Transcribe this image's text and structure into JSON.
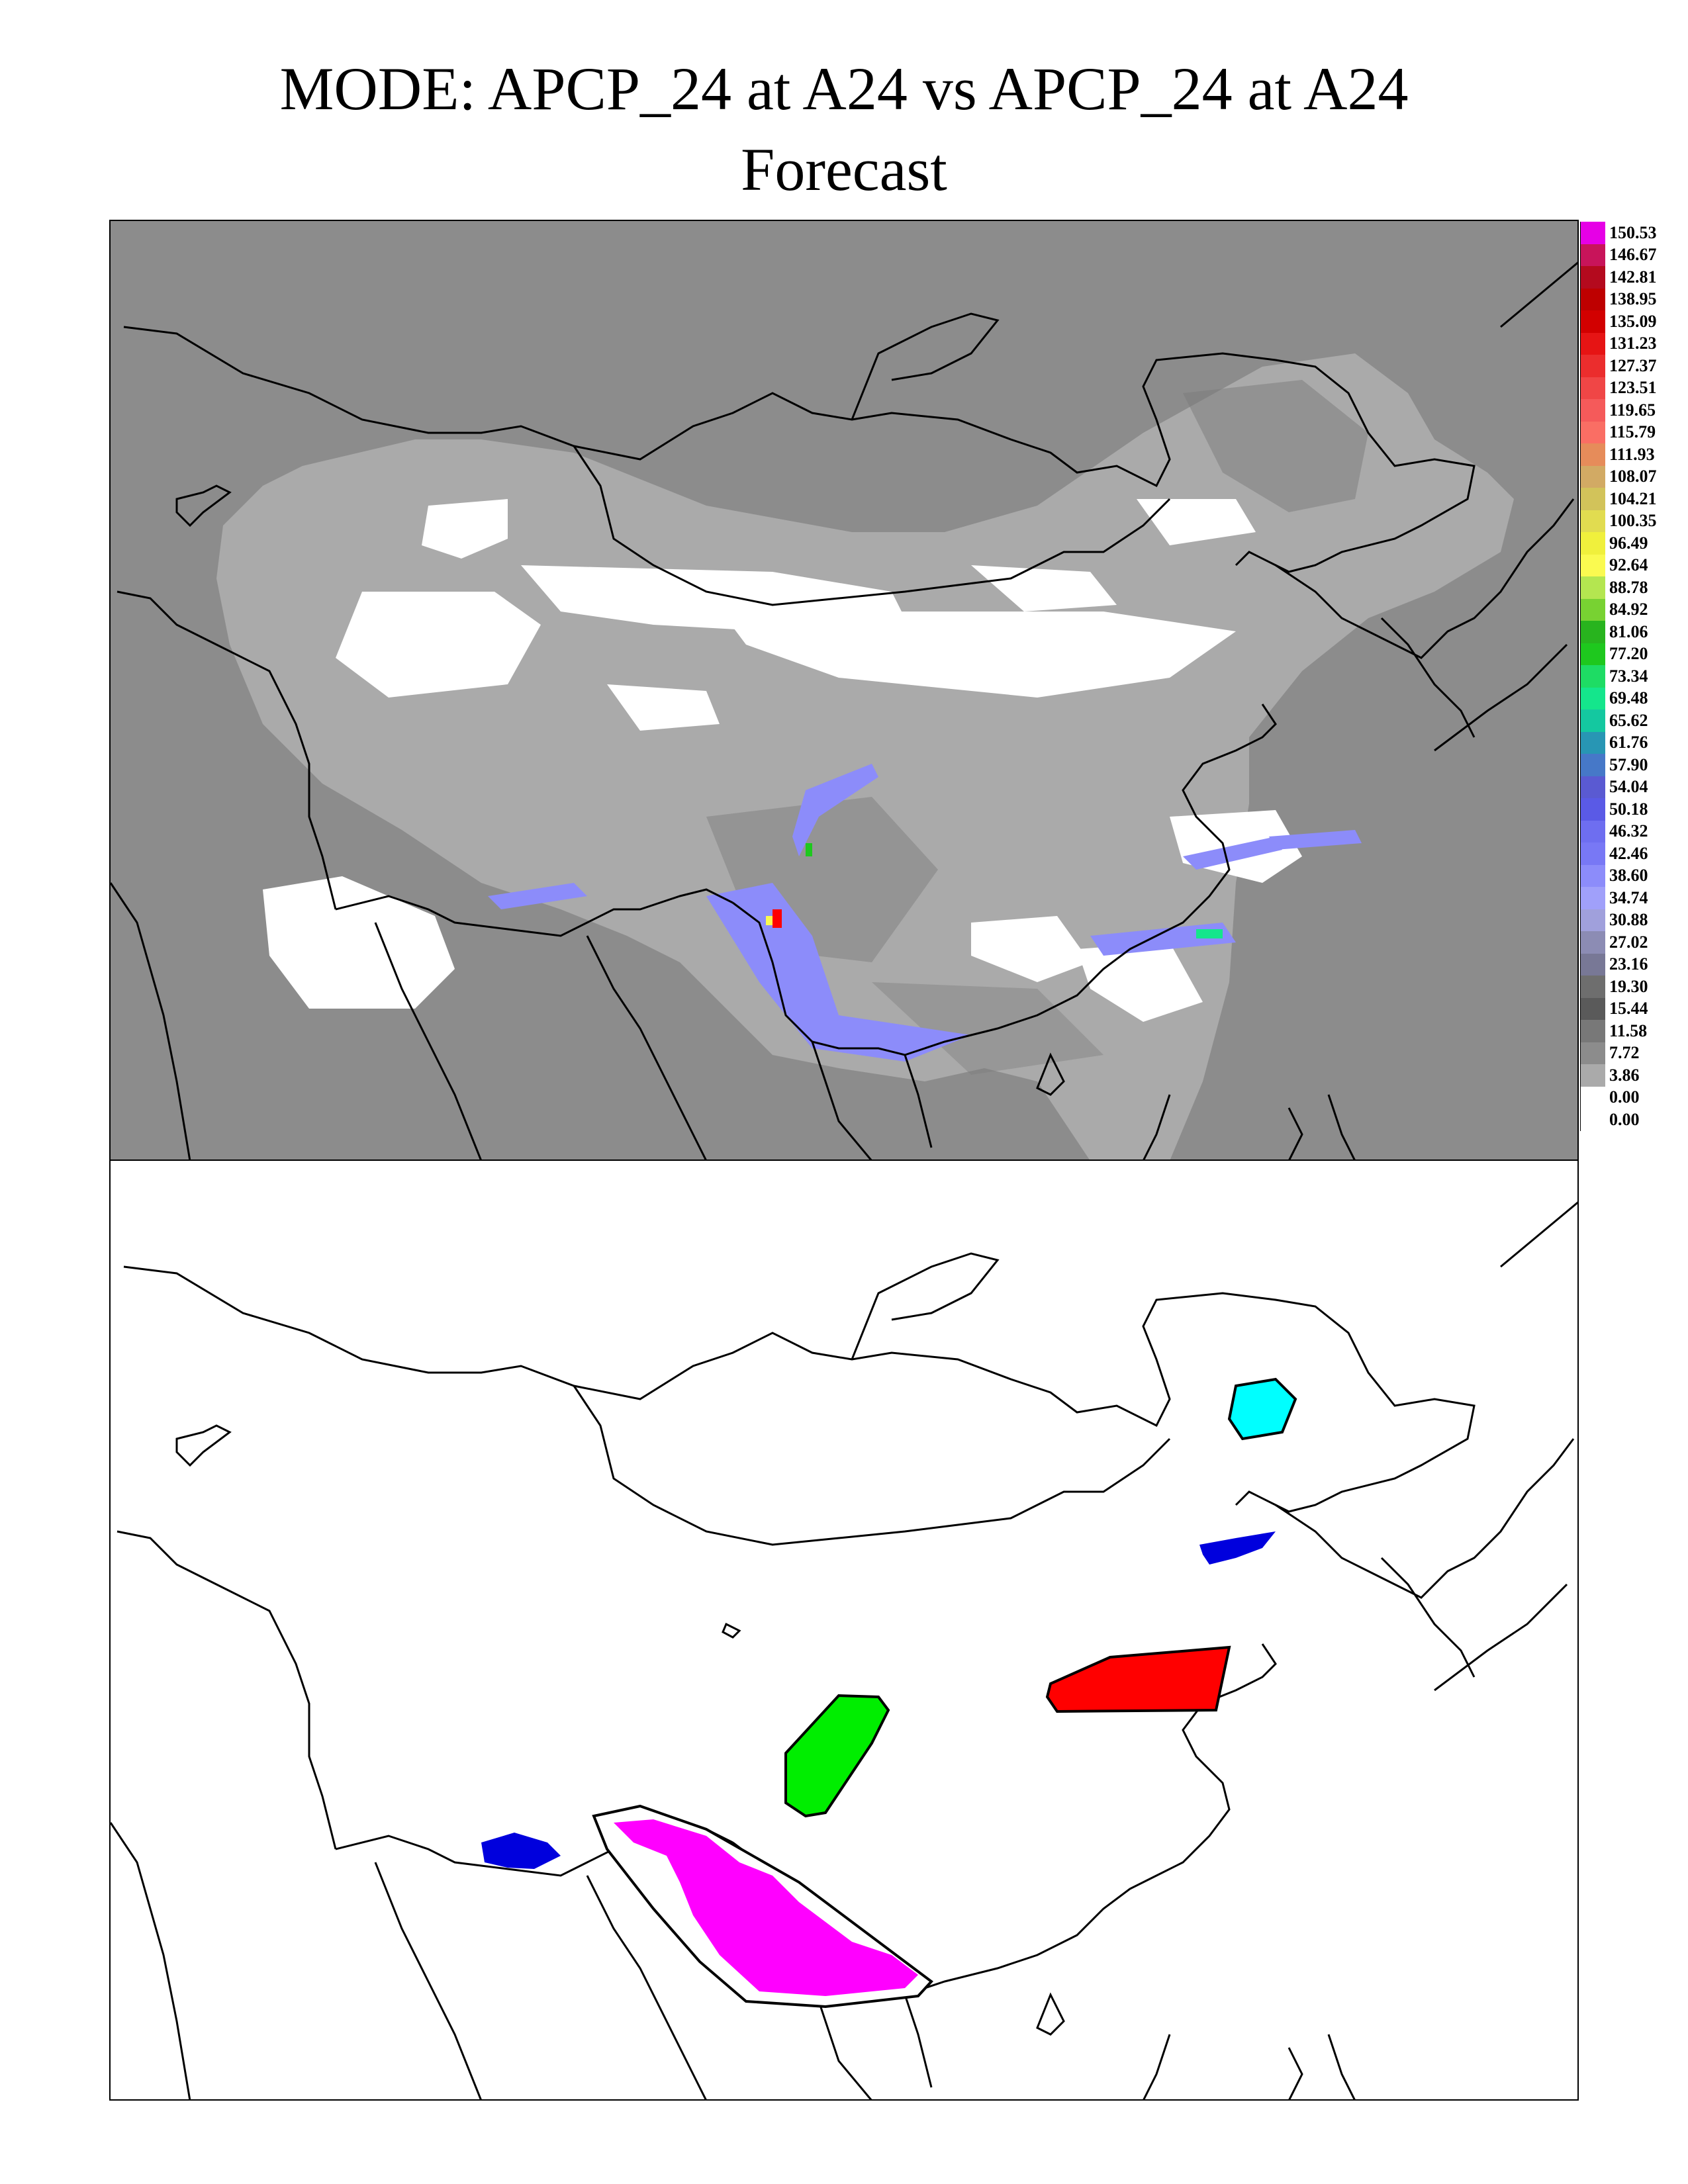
{
  "title": {
    "line1": "MODE: APCP_24 at A24 vs APCP_24 at A24",
    "line2": "Forecast"
  },
  "legend": [
    {
      "label": "150.53",
      "color": "#e600e6"
    },
    {
      "label": "146.67",
      "color": "#c8145a"
    },
    {
      "label": "142.81",
      "color": "#b40a1e"
    },
    {
      "label": "138.95",
      "color": "#be0000"
    },
    {
      "label": "135.09",
      "color": "#d20000"
    },
    {
      "label": "131.23",
      "color": "#e61414"
    },
    {
      "label": "127.37",
      "color": "#eb2d2d"
    },
    {
      "label": "123.51",
      "color": "#f04646"
    },
    {
      "label": "119.65",
      "color": "#f55a5a"
    },
    {
      "label": "115.79",
      "color": "#fa6e64"
    },
    {
      "label": "111.93",
      "color": "#e68c5a"
    },
    {
      "label": "108.07",
      "color": "#d2aa64"
    },
    {
      "label": "104.21",
      "color": "#d2c35a"
    },
    {
      "label": "100.35",
      "color": "#e1dc50"
    },
    {
      "label": "96.49",
      "color": "#f0f03c"
    },
    {
      "label": "92.64",
      "color": "#fafa50"
    },
    {
      "label": "88.78",
      "color": "#b4e650"
    },
    {
      "label": "84.92",
      "color": "#78d232"
    },
    {
      "label": "81.06",
      "color": "#28b41e"
    },
    {
      "label": "77.20",
      "color": "#1ec81e"
    },
    {
      "label": "73.34",
      "color": "#1edc64"
    },
    {
      "label": "69.48",
      "color": "#14e68c"
    },
    {
      "label": "65.62",
      "color": "#14c8a0"
    },
    {
      "label": "61.76",
      "color": "#2896b4"
    },
    {
      "label": "57.90",
      "color": "#4678c8"
    },
    {
      "label": "54.04",
      "color": "#5a5ad2"
    },
    {
      "label": "50.18",
      "color": "#5a5ae6"
    },
    {
      "label": "46.32",
      "color": "#6e6ef0"
    },
    {
      "label": "42.46",
      "color": "#7878f5"
    },
    {
      "label": "38.60",
      "color": "#8c8cfa"
    },
    {
      "label": "34.74",
      "color": "#a0a0fa"
    },
    {
      "label": "30.88",
      "color": "#a0a0dc"
    },
    {
      "label": "27.02",
      "color": "#8c8cb4"
    },
    {
      "label": "23.16",
      "color": "#787896"
    },
    {
      "label": "19.30",
      "color": "#6e6e6e"
    },
    {
      "label": "15.44",
      "color": "#5a5a5a"
    },
    {
      "label": "11.58",
      "color": "#787878"
    },
    {
      "label": "7.72",
      "color": "#8c8c8c"
    },
    {
      "label": "3.86",
      "color": "#aaaaaa"
    },
    {
      "label": "0.00",
      "color": "#ffffff"
    },
    {
      "label": "0.00",
      "color": "#ffffff"
    }
  ],
  "objects": [
    {
      "name": "cyan",
      "color": "#00ffff"
    },
    {
      "name": "blue-korea",
      "color": "#0000dd"
    },
    {
      "name": "red-north-china",
      "color": "#ff0000"
    },
    {
      "name": "green-sichuan",
      "color": "#00ee00"
    },
    {
      "name": "blue-nepal",
      "color": "#0000dd"
    },
    {
      "name": "magenta-south",
      "color": "#ff00ff"
    }
  ],
  "colors": {
    "background_field": "#8c8c8c",
    "domain_gray": "#aaaaaa",
    "no_precip": "#ffffff",
    "outline": "#000000"
  }
}
